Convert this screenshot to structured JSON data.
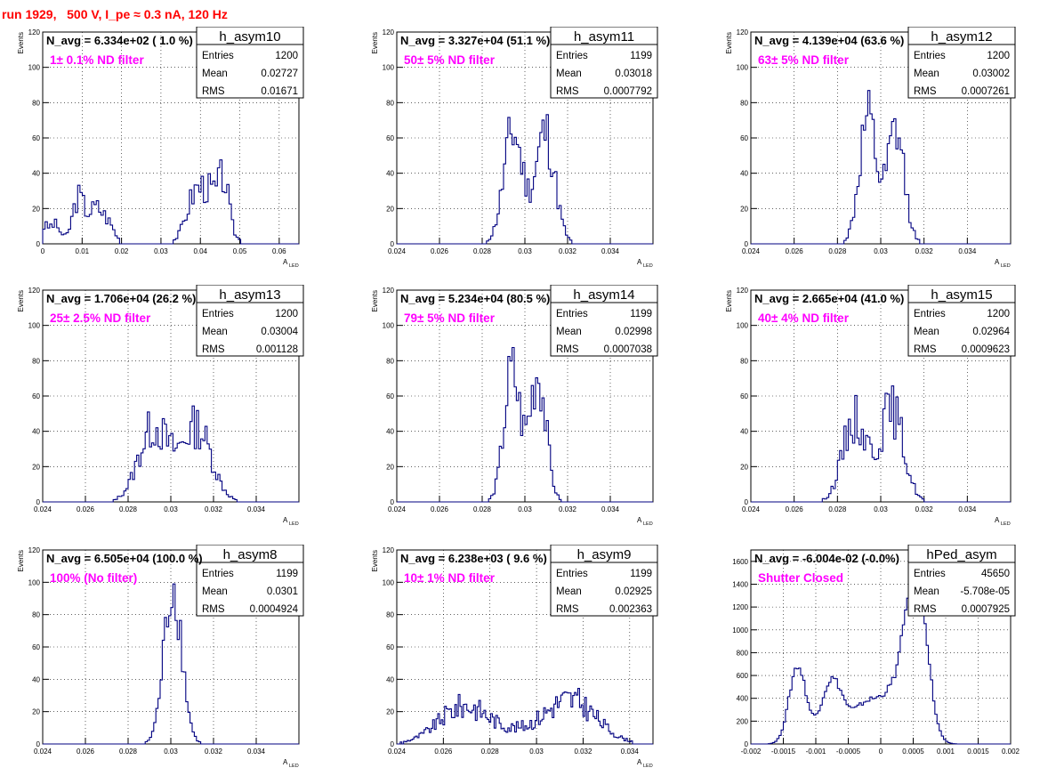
{
  "run_title": "run 1929,   500 V, I_pe ≈ 0.3 nA, 120 Hz",
  "colors": {
    "histogram": "#000080",
    "annotation": "#ff00ff",
    "run_title": "#ff0000",
    "frame": "#000000"
  },
  "chart_data": [
    {
      "type": "histogram",
      "name": "h_asym10",
      "navg": "N_avg = 6.334e+02 ( 1.0 %)",
      "label": "1± 0.1% ND filter",
      "stats": [
        {
          "k": "Entries",
          "v": "1200"
        },
        {
          "k": "Mean",
          "v": "0.02727"
        },
        {
          "k": "RMS",
          "v": "0.01671"
        }
      ],
      "xlabel": "A",
      "xlabel_sub": "LED",
      "ylabel": "Events",
      "xlim": [
        0,
        0.065
      ],
      "ylim": [
        0,
        120
      ],
      "xticks": [
        0,
        0.01,
        0.02,
        0.03,
        0.04,
        0.05,
        0.06
      ],
      "xtick_labels": [
        "0",
        "0.01",
        "0.02",
        "0.03",
        "0.04",
        "0.05",
        "0.06"
      ],
      "yticks": [
        0,
        20,
        40,
        60,
        80,
        100,
        120
      ],
      "ytick_labels": [
        "0",
        "20",
        "40",
        "60",
        "80",
        "100",
        "120"
      ],
      "peaks": [
        [
          0.0001,
          0.001,
          8
        ],
        [
          0.003,
          0.0015,
          11
        ],
        [
          0.009,
          0.0015,
          25
        ],
        [
          0.0135,
          0.002,
          20
        ],
        [
          0.017,
          0.0015,
          8
        ],
        [
          0.042,
          0.0035,
          30
        ],
        [
          0.046,
          0.0012,
          22
        ],
        [
          0.038,
          0.002,
          12
        ]
      ],
      "noise": 0.3,
      "seed": 3,
      "bins": 110
    },
    {
      "type": "histogram",
      "name": "h_asym11",
      "navg": "N_avg = 3.327e+04 (51.1 %)",
      "label": "50± 5% ND filter",
      "stats": [
        {
          "k": "Entries",
          "v": "1199"
        },
        {
          "k": "Mean",
          "v": "0.03018"
        },
        {
          "k": "RMS",
          "v": "0.0007792"
        }
      ],
      "xlabel": "A",
      "xlabel_sub": "LED",
      "ylabel": "Events",
      "xlim": [
        0.024,
        0.036
      ],
      "ylim": [
        0,
        120
      ],
      "xticks": [
        0.024,
        0.026,
        0.028,
        0.03,
        0.032,
        0.034
      ],
      "xtick_labels": [
        "0.024",
        "0.026",
        "0.028",
        "0.03",
        "0.032",
        "0.034"
      ],
      "yticks": [
        0,
        20,
        40,
        60,
        80,
        100,
        120
      ],
      "ytick_labels": [
        "0",
        "20",
        "40",
        "60",
        "80",
        "100",
        "120"
      ],
      "peaks": [
        [
          0.02945,
          0.00045,
          63
        ],
        [
          0.03095,
          0.00045,
          63
        ]
      ],
      "noise": 0.28,
      "seed": 11,
      "bins": 120
    },
    {
      "type": "histogram",
      "name": "h_asym12",
      "navg": "N_avg = 4.139e+04 (63.6 %)",
      "label": "63± 5% ND filter",
      "stats": [
        {
          "k": "Entries",
          "v": "1200"
        },
        {
          "k": "Mean",
          "v": "0.03002"
        },
        {
          "k": "RMS",
          "v": "0.0007261"
        }
      ],
      "xlabel": "A",
      "xlabel_sub": "LED",
      "ylabel": "Events",
      "xlim": [
        0.024,
        0.036
      ],
      "ylim": [
        0,
        120
      ],
      "xticks": [
        0.024,
        0.026,
        0.028,
        0.03,
        0.032,
        0.034
      ],
      "xtick_labels": [
        "0.024",
        "0.026",
        "0.028",
        "0.03",
        "0.032",
        "0.034"
      ],
      "yticks": [
        0,
        20,
        40,
        60,
        80,
        100,
        120
      ],
      "ytick_labels": [
        "0",
        "20",
        "40",
        "60",
        "80",
        "100",
        "120"
      ],
      "peaks": [
        [
          0.0294,
          0.0004,
          68
        ],
        [
          0.0307,
          0.0004,
          62
        ]
      ],
      "noise": 0.28,
      "seed": 12,
      "bins": 120
    },
    {
      "type": "histogram",
      "name": "h_asym13",
      "navg": "N_avg = 1.706e+04 (26.2 %)",
      "label": "25± 2.5% ND filter",
      "stats": [
        {
          "k": "Entries",
          "v": "1200"
        },
        {
          "k": "Mean",
          "v": "0.03004"
        },
        {
          "k": "RMS",
          "v": "0.001128"
        }
      ],
      "xlabel": "A",
      "xlabel_sub": "LED",
      "ylabel": "Events",
      "xlim": [
        0.024,
        0.036
      ],
      "ylim": [
        0,
        120
      ],
      "xticks": [
        0.024,
        0.026,
        0.028,
        0.03,
        0.032,
        0.034
      ],
      "xtick_labels": [
        "0.024",
        "0.026",
        "0.028",
        "0.03",
        "0.032",
        "0.034"
      ],
      "yticks": [
        0,
        20,
        40,
        60,
        80,
        100,
        120
      ],
      "ytick_labels": [
        "0",
        "20",
        "40",
        "60",
        "80",
        "100",
        "120"
      ],
      "peaks": [
        [
          0.0292,
          0.0007,
          42
        ],
        [
          0.0312,
          0.0007,
          42
        ]
      ],
      "noise": 0.3,
      "seed": 13,
      "bins": 120
    },
    {
      "type": "histogram",
      "name": "h_asym14",
      "navg": "N_avg = 5.234e+04 (80.5 %)",
      "label": "79± 5% ND filter",
      "stats": [
        {
          "k": "Entries",
          "v": "1199"
        },
        {
          "k": "Mean",
          "v": "0.02998"
        },
        {
          "k": "RMS",
          "v": "0.0007038"
        }
      ],
      "xlabel": "A",
      "xlabel_sub": "LED",
      "ylabel": "Events",
      "xlim": [
        0.024,
        0.036
      ],
      "ylim": [
        0,
        120
      ],
      "xticks": [
        0.024,
        0.026,
        0.028,
        0.03,
        0.032,
        0.034
      ],
      "xtick_labels": [
        "0.024",
        "0.026",
        "0.028",
        "0.03",
        "0.032",
        "0.034"
      ],
      "yticks": [
        0,
        20,
        40,
        60,
        80,
        100,
        120
      ],
      "ytick_labels": [
        "0",
        "20",
        "40",
        "60",
        "80",
        "100",
        "120"
      ],
      "peaks": [
        [
          0.0294,
          0.00038,
          73
        ],
        [
          0.0306,
          0.00038,
          73
        ]
      ],
      "noise": 0.28,
      "seed": 14,
      "bins": 120
    },
    {
      "type": "histogram",
      "name": "h_asym15",
      "navg": "N_avg = 2.665e+04 (41.0 %)",
      "label": "40± 4% ND filter",
      "stats": [
        {
          "k": "Entries",
          "v": "1200"
        },
        {
          "k": "Mean",
          "v": "0.02964"
        },
        {
          "k": "RMS",
          "v": "0.0009623"
        }
      ],
      "xlabel": "A",
      "xlabel_sub": "LED",
      "ylabel": "Events",
      "xlim": [
        0.024,
        0.036
      ],
      "ylim": [
        0,
        120
      ],
      "xticks": [
        0.024,
        0.026,
        0.028,
        0.03,
        0.032,
        0.034
      ],
      "xtick_labels": [
        "0.024",
        "0.026",
        "0.028",
        "0.03",
        "0.032",
        "0.034"
      ],
      "yticks": [
        0,
        20,
        40,
        60,
        80,
        100,
        120
      ],
      "ytick_labels": [
        "0",
        "20",
        "40",
        "60",
        "80",
        "100",
        "120"
      ],
      "peaks": [
        [
          0.0288,
          0.00055,
          47
        ],
        [
          0.0305,
          0.00055,
          52
        ]
      ],
      "noise": 0.3,
      "seed": 15,
      "bins": 120
    },
    {
      "type": "histogram",
      "name": "h_asym8",
      "navg": "N_avg = 6.505e+04 (100.0 %)",
      "label": "100% (No filter)",
      "stats": [
        {
          "k": "Entries",
          "v": "1199"
        },
        {
          "k": "Mean",
          "v": "0.0301"
        },
        {
          "k": "RMS",
          "v": "0.0004924"
        }
      ],
      "xlabel": "A",
      "xlabel_sub": "LED",
      "ylabel": "Events",
      "xlim": [
        0.024,
        0.036
      ],
      "ylim": [
        0,
        120
      ],
      "xticks": [
        0.024,
        0.026,
        0.028,
        0.03,
        0.032,
        0.034
      ],
      "xtick_labels": [
        "0.024",
        "0.026",
        "0.028",
        "0.03",
        "0.032",
        "0.034"
      ],
      "yticks": [
        0,
        20,
        40,
        60,
        80,
        100,
        120
      ],
      "ytick_labels": [
        "0",
        "20",
        "40",
        "60",
        "80",
        "100",
        "120"
      ],
      "peaks": [
        [
          0.0301,
          0.00042,
          98
        ]
      ],
      "noise": 0.22,
      "seed": 8,
      "bins": 120
    },
    {
      "type": "histogram",
      "name": "h_asym9",
      "navg": "N_avg = 6.238e+03 ( 9.6 %)",
      "label": "10± 1% ND filter",
      "stats": [
        {
          "k": "Entries",
          "v": "1199"
        },
        {
          "k": "Mean",
          "v": "0.02925"
        },
        {
          "k": "RMS",
          "v": "0.002363"
        }
      ],
      "xlabel": "A",
      "xlabel_sub": "LED",
      "ylabel": "Events",
      "xlim": [
        0.024,
        0.035
      ],
      "ylim": [
        0,
        120
      ],
      "xticks": [
        0.024,
        0.026,
        0.028,
        0.03,
        0.032,
        0.034
      ],
      "xtick_labels": [
        "0.024",
        "0.026",
        "0.028",
        "0.03",
        "0.032",
        "0.034"
      ],
      "yticks": [
        0,
        20,
        40,
        60,
        80,
        100,
        120
      ],
      "ytick_labels": [
        "0",
        "20",
        "40",
        "60",
        "80",
        "100",
        "120"
      ],
      "peaks": [
        [
          0.0269,
          0.0011,
          23
        ],
        [
          0.0315,
          0.0011,
          26
        ],
        [
          0.0295,
          0.0012,
          5
        ]
      ],
      "noise": 0.35,
      "seed": 9,
      "bins": 150
    },
    {
      "type": "histogram",
      "name": "hPed_asym",
      "navg": "N_avg = -6.004e-02 (-0.0%)",
      "label": "Shutter Closed",
      "stats": [
        {
          "k": "Entries",
          "v": "45650"
        },
        {
          "k": "Mean",
          "v": "-5.708e-05"
        },
        {
          "k": "RMS",
          "v": "0.0007925"
        }
      ],
      "xlabel": "",
      "xlabel_sub": "",
      "ylabel": "",
      "xlim": [
        -0.002,
        0.002
      ],
      "ylim": [
        0,
        1700
      ],
      "xticks": [
        -0.002,
        -0.0015,
        -0.001,
        -0.0005,
        0,
        0.0005,
        0.001,
        0.0015,
        0.002
      ],
      "xtick_labels": [
        "-0.002",
        "-0.0015",
        "-0.001",
        "-0.0005",
        "0",
        "0.0005",
        "0.001",
        "0.0015",
        "0.002"
      ],
      "yticks": [
        0,
        200,
        400,
        600,
        800,
        1000,
        1200,
        1400,
        1600
      ],
      "ytick_labels": [
        "0",
        "200",
        "400",
        "600",
        "800",
        "1000",
        "1200",
        "1400",
        "1600"
      ],
      "peaks": [
        [
          -0.00128,
          0.00013,
          680
        ],
        [
          -0.00075,
          0.00017,
          560
        ],
        [
          -0.00025,
          0.0002,
          310
        ],
        [
          0.00055,
          0.00016,
          1520
        ],
        [
          0.0002,
          0.00022,
          420
        ]
      ],
      "noise": 0.06,
      "seed": 20,
      "bins": 120
    }
  ]
}
